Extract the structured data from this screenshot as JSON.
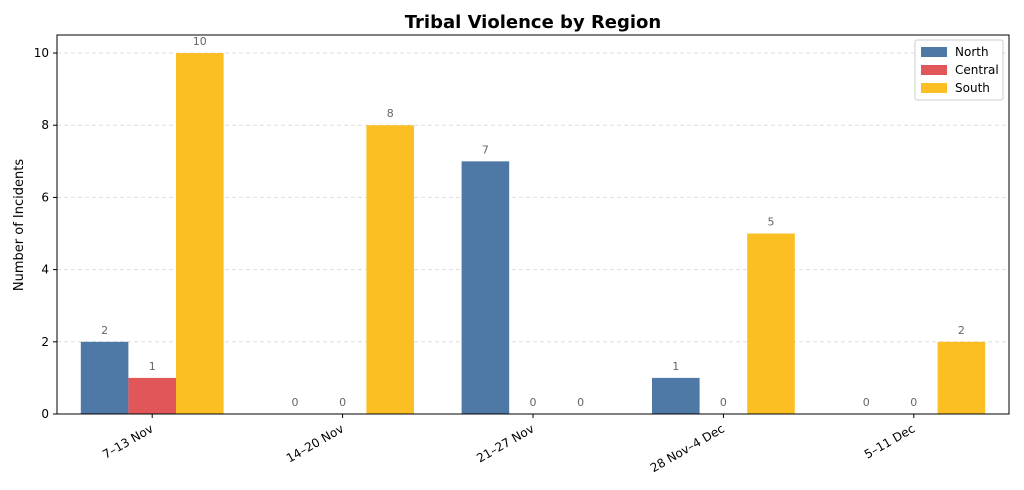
{
  "chart_data": {
    "type": "bar",
    "title": "Tribal Violence by Region",
    "xlabel": "",
    "ylabel": "Number of Incidents",
    "categories": [
      "7–13 Nov",
      "14–20 Nov",
      "21–27 Nov",
      "28 Nov–4 Dec",
      "5–11 Dec"
    ],
    "series": [
      {
        "name": "North",
        "values": [
          2,
          0,
          7,
          1,
          0
        ],
        "color": "#4e79a7"
      },
      {
        "name": "Central",
        "values": [
          1,
          0,
          0,
          0,
          0
        ],
        "color": "#e15759"
      },
      {
        "name": "South",
        "values": [
          10,
          8,
          0,
          5,
          2
        ],
        "color": "#fbbf24"
      }
    ],
    "ylim": [
      0,
      10.5
    ],
    "yticks": [
      0,
      2,
      4,
      6,
      8,
      10
    ],
    "grid": "y-dashed",
    "legend_position": "top-right",
    "data_labels": true
  }
}
